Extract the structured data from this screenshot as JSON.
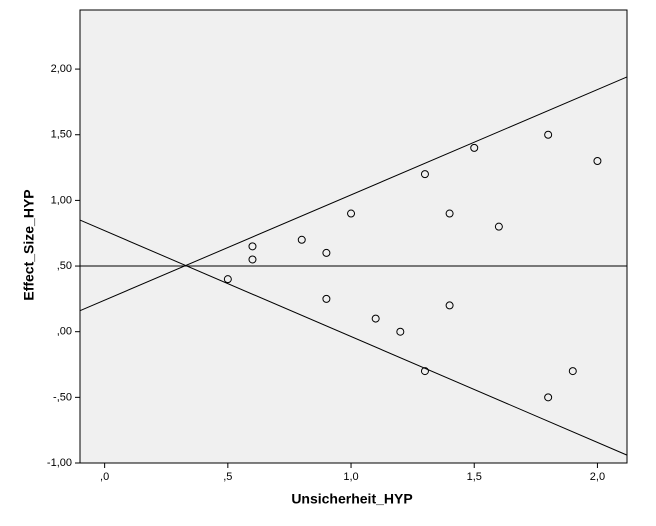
{
  "chart_data": {
    "type": "scatter",
    "x_label": "Unsicherheit_HYP",
    "y_label": "Effect_Size_HYP",
    "xlim": [
      -0.1,
      2.12
    ],
    "ylim": [
      -1,
      2.45
    ],
    "xticks": [
      {
        "value": 0,
        "label": ",0"
      },
      {
        "value": 0.5,
        "label": ",5"
      },
      {
        "value": 1,
        "label": "1,0"
      },
      {
        "value": 1.5,
        "label": "1,5"
      },
      {
        "value": 2,
        "label": "2,0"
      }
    ],
    "yticks": [
      {
        "value": -1,
        "label": "-1,00"
      },
      {
        "value": -0.5,
        "label": "-,50"
      },
      {
        "value": 0,
        "label": ",00"
      },
      {
        "value": 0.5,
        "label": ",50"
      },
      {
        "value": 1,
        "label": "1,00"
      },
      {
        "value": 1.5,
        "label": "1,50"
      },
      {
        "value": 2,
        "label": "2,00"
      }
    ],
    "x": [
      0.5,
      0.6,
      0.6,
      0.8,
      0.9,
      0.9,
      1.0,
      1.1,
      1.2,
      1.3,
      1.3,
      1.4,
      1.4,
      1.5,
      1.6,
      1.8,
      1.8,
      1.9,
      2.0
    ],
    "values": [
      0.4,
      0.65,
      0.55,
      0.7,
      0.6,
      0.25,
      0.9,
      0.1,
      0.0,
      1.2,
      -0.3,
      0.9,
      0.2,
      1.4,
      0.8,
      1.5,
      -0.5,
      -0.3,
      1.3
    ],
    "lines": [
      {
        "x": [
          -0.1,
          2.12
        ],
        "values": [
          0.5,
          0.5
        ]
      },
      {
        "x": [
          -0.1,
          2.12
        ],
        "values": [
          0.16,
          1.94
        ]
      },
      {
        "x": [
          -0.1,
          2.12
        ],
        "values": [
          0.85,
          -0.94
        ]
      }
    ],
    "plot_background": "#f0f0f0",
    "marker_color": "#000000"
  }
}
